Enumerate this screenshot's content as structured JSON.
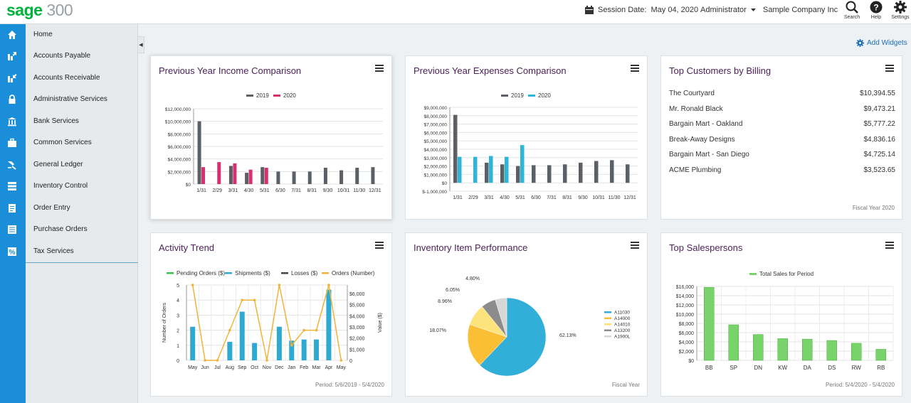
{
  "app": {
    "logo_brand": "sage",
    "logo_version": "300"
  },
  "topbar": {
    "session_label": "Session Date:",
    "session_date": "May 04, 2020",
    "user": "Administrator",
    "company": "Sample Company Inc",
    "search_label": "Search",
    "help_label": "Help",
    "settings_label": "Settings"
  },
  "sidebar": {
    "items": [
      {
        "label": "Home",
        "icon": "home-icon"
      },
      {
        "label": "Accounts Payable",
        "icon": "accounts-payable-icon"
      },
      {
        "label": "Accounts Receivable",
        "icon": "accounts-receivable-icon"
      },
      {
        "label": "Administrative Services",
        "icon": "lock-icon"
      },
      {
        "label": "Bank Services",
        "icon": "bank-icon"
      },
      {
        "label": "Common Services",
        "icon": "briefcase-icon"
      },
      {
        "label": "General Ledger",
        "icon": "ledger-icon"
      },
      {
        "label": "Inventory Control",
        "icon": "inventory-icon"
      },
      {
        "label": "Order Entry",
        "icon": "order-icon"
      },
      {
        "label": "Purchase Orders",
        "icon": "purchase-icon"
      },
      {
        "label": "Tax Services",
        "icon": "tax-icon"
      }
    ]
  },
  "dashboard": {
    "add_widgets_label": "Add Widgets"
  },
  "widgets": {
    "income": {
      "title": "Previous Year Income Comparison"
    },
    "expenses": {
      "title": "Previous Year Expenses Comparison"
    },
    "customers": {
      "title": "Top Customers by Billing",
      "rows": [
        {
          "name": "The Courtyard",
          "amount": "$10,394.55"
        },
        {
          "name": "Mr. Ronald Black",
          "amount": "$9,473.21"
        },
        {
          "name": "Bargain Mart - Oakland",
          "amount": "$5,777.22"
        },
        {
          "name": "Break-Away Designs",
          "amount": "$4,836.16"
        },
        {
          "name": "Bargain Mart - San Diego",
          "amount": "$4,725.14"
        },
        {
          "name": "ACME Plumbing",
          "amount": "$3,523.65"
        }
      ],
      "footer": "Fiscal Year 2020"
    },
    "activity": {
      "title": "Activity Trend",
      "footer": "Period: 5/6/2019 - 5/4/2020"
    },
    "inventory": {
      "title": "Inventory Item Performance",
      "footer": "Fiscal Year"
    },
    "salespersons": {
      "title": "Top Salespersons",
      "footer": "Period: 5/4/2020 - 5/4/2020"
    }
  },
  "colors": {
    "series_2019": "#5b6067",
    "series_2020_income": "#d6306e",
    "series_2020_expense": "#2eb6d9",
    "sales": "#77d36a",
    "brand": "#00b33c",
    "rail": "#1a8ed8",
    "title": "#4b1f56"
  },
  "chart_data": [
    {
      "id": "income",
      "type": "bar",
      "categories": [
        "1/31",
        "2/29",
        "3/31",
        "4/30",
        "5/31",
        "6/30",
        "7/31",
        "8/31",
        "9/30",
        "10/31",
        "11/30",
        "12/31"
      ],
      "series": [
        {
          "name": "2019",
          "values": [
            10000000,
            0,
            2900000,
            1800000,
            2700000,
            2000000,
            2000000,
            2000000,
            2600000,
            2200000,
            2600000,
            2700000
          ]
        },
        {
          "name": "2020",
          "values": [
            2700000,
            3500000,
            3300000,
            2300000,
            2600000,
            0,
            0,
            0,
            0,
            0,
            0,
            0
          ]
        }
      ],
      "yticks": [
        "$12,000,000",
        "$10,000,000",
        "$8,000,000",
        "$6,000,000",
        "$4,000,000",
        "$2,000,000",
        "$0"
      ],
      "ylim": [
        0,
        12000000
      ],
      "legend": "top"
    },
    {
      "id": "expenses",
      "type": "bar",
      "categories": [
        "1/31",
        "2/29",
        "3/31",
        "4/30",
        "5/31",
        "6/30",
        "7/31",
        "8/31",
        "9/30",
        "10/31",
        "11/30",
        "12/31"
      ],
      "series": [
        {
          "name": "2019",
          "values": [
            8100000,
            0,
            2400000,
            2200000,
            2000000,
            2100000,
            2100000,
            2200000,
            2400000,
            2600000,
            2700000,
            2200000
          ]
        },
        {
          "name": "2020",
          "values": [
            3100000,
            3100000,
            3200000,
            3100000,
            4500000,
            0,
            0,
            0,
            0,
            0,
            0,
            0
          ]
        }
      ],
      "yticks": [
        "$9,000,000",
        "$8,000,000",
        "$7,000,000",
        "$6,000,000",
        "$5,000,000",
        "$4,000,000",
        "$3,000,000",
        "$2,000,000",
        "$1,000,000",
        "$0",
        "$-1,000,000"
      ],
      "ylim": [
        -1000000,
        9000000
      ],
      "legend": "top"
    },
    {
      "id": "activity",
      "type": "bar",
      "categories": [
        "May",
        "Jun",
        "Jul",
        "Aug",
        "Sep",
        "Oct",
        "Nov",
        "Dec",
        "Jan",
        "Feb",
        "Mar",
        "Apr",
        "May"
      ],
      "legend_entries": [
        "Pending Orders ($)",
        "Shipments ($)",
        "Losses ($)",
        "Orders (Number)"
      ],
      "series": [
        {
          "name": "Shipments ($)",
          "axis": "value",
          "values": [
            2900,
            0,
            0,
            1600,
            4200,
            1500,
            0,
            2900,
            1700,
            1800,
            1800,
            6100,
            0
          ]
        },
        {
          "name": "Orders (Number)",
          "axis": "count",
          "type": "line",
          "values": [
            5,
            0,
            0,
            2,
            4,
            4,
            0,
            5,
            1,
            2,
            2,
            5,
            0
          ]
        }
      ],
      "ylabel_left": "Number of Orders",
      "ylabel_right": "Value ($)",
      "left_ticks": [
        "5",
        "4",
        "3",
        "2",
        "1",
        "0"
      ],
      "right_ticks": [
        "$6,000",
        "$5,000",
        "$4,000",
        "$3,000",
        "$2,000",
        "$1,000",
        "0"
      ],
      "ylim_left": [
        0,
        5
      ],
      "ylim_right": [
        0,
        6500
      ],
      "legend": "top"
    },
    {
      "id": "inventory",
      "type": "pie",
      "slices": [
        {
          "name": "A11030",
          "value": 62.13,
          "label": "62.13%"
        },
        {
          "name": "A14000",
          "value": 18.07,
          "label": "18.07%"
        },
        {
          "name": "A14010",
          "value": 8.96,
          "label": "8.96%"
        },
        {
          "name": "A13200",
          "value": 6.05,
          "label": "6.05%"
        },
        {
          "name": "A1900L",
          "value": 4.8,
          "label": "4.80%"
        }
      ],
      "legend": "right"
    },
    {
      "id": "salespersons",
      "type": "bar",
      "categories": [
        "BB",
        "SP",
        "DN",
        "KW",
        "DA",
        "DS",
        "RW",
        "RB"
      ],
      "series": [
        {
          "name": "Total Sales for Period",
          "values": [
            15800,
            7700,
            5600,
            4700,
            4600,
            4300,
            3700,
            2400
          ]
        }
      ],
      "yticks": [
        "$16,000",
        "$14,000",
        "$12,000",
        "$10,000",
        "$8,000",
        "$6,000",
        "$4,000",
        "$2,000",
        "$0"
      ],
      "ylim": [
        0,
        16000
      ],
      "legend": "top"
    }
  ]
}
